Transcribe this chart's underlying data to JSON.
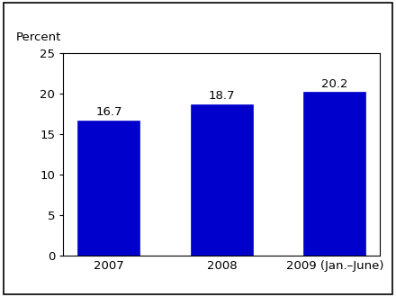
{
  "categories": [
    "2007",
    "2008",
    "2009 (Jan.–June)"
  ],
  "values": [
    16.7,
    18.7,
    20.2
  ],
  "bar_color": "#0000CC",
  "bar_edgecolor": "#0000CC",
  "ylabel": "Percent",
  "ylim": [
    0,
    25
  ],
  "yticks": [
    0,
    5,
    10,
    15,
    20,
    25
  ],
  "value_labels": [
    "16.7",
    "18.7",
    "20.2"
  ],
  "background_color": "#ffffff",
  "label_fontsize": 9.5,
  "ylabel_fontsize": 9.5,
  "tick_fontsize": 9.5,
  "bar_width": 0.55
}
